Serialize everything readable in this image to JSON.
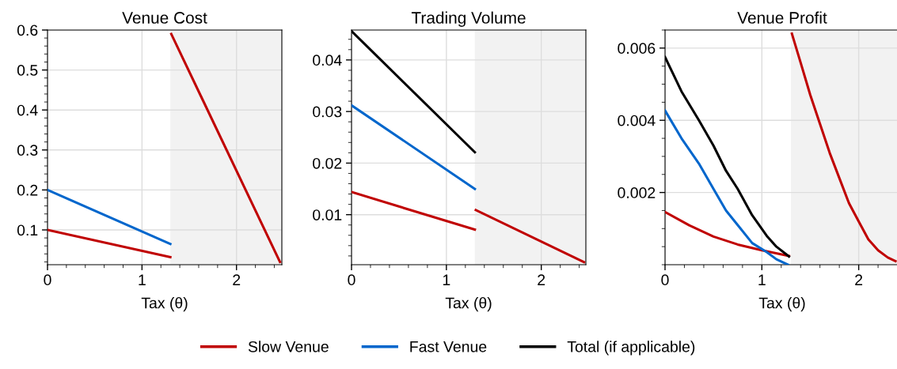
{
  "chart_data": [
    {
      "type": "line",
      "title": "Venue Cost",
      "xlabel": "Tax (θ)",
      "xlim": [
        0,
        2.48
      ],
      "xticks": [
        0,
        1,
        2
      ],
      "ylim": [
        0.013,
        0.6
      ],
      "yticks": [
        0.1,
        0.2,
        0.3,
        0.4,
        0.5,
        0.6
      ],
      "grid": true,
      "legend": "bottom",
      "bands": [
        {
          "axis": "x",
          "from": 1.3,
          "to": 2.48,
          "color": "#f2f2f2"
        }
      ],
      "series": [
        {
          "name": "Slow Venue",
          "color": "#c00000",
          "x": [
            0,
            1.3
          ],
          "values": [
            0.1,
            0.032
          ]
        },
        {
          "color": "#c00000",
          "x": [
            1.31,
            2.46
          ],
          "values": [
            0.59,
            0.02
          ]
        },
        {
          "name": "Fast Venue",
          "color": "#0066cc",
          "x": [
            0,
            1.3
          ],
          "values": [
            0.2,
            0.065
          ]
        }
      ]
    },
    {
      "type": "line",
      "title": "Trading Volume",
      "xlabel": "Tax (θ)",
      "xlim": [
        0,
        2.47
      ],
      "xticks": [
        0,
        1,
        2
      ],
      "ylim": [
        0.0003,
        0.0458
      ],
      "yticks": [
        0.01,
        0.02,
        0.03,
        0.04
      ],
      "grid": true,
      "legend": "bottom",
      "bands": [
        {
          "axis": "x",
          "from": 1.3,
          "to": 2.47,
          "color": "#f2f2f2"
        }
      ],
      "series": [
        {
          "name": "Slow Venue",
          "color": "#c00000",
          "x": [
            0,
            1.3
          ],
          "values": [
            0.0144,
            0.0071
          ]
        },
        {
          "color": "#c00000",
          "x": [
            1.31,
            2.45
          ],
          "values": [
            0.0109,
            0.0008
          ]
        },
        {
          "name": "Fast Venue",
          "color": "#0066cc",
          "x": [
            0,
            1.3
          ],
          "values": [
            0.0312,
            0.015
          ]
        },
        {
          "name": "Total (if applicable)",
          "color": "#000000",
          "x": [
            0,
            1.3
          ],
          "values": [
            0.0456,
            0.0221
          ]
        }
      ]
    },
    {
      "type": "line",
      "title": "Venue Profit",
      "xlabel": "Tax (θ)",
      "xlim": [
        0,
        2.42
      ],
      "xticks": [
        0,
        1,
        2
      ],
      "ylim": [
        0,
        0.0065
      ],
      "yticks": [
        0.002,
        0.004,
        0.006
      ],
      "grid": true,
      "legend": "bottom",
      "bands": [
        {
          "axis": "x",
          "from": 1.3,
          "to": 2.42,
          "color": "#f2f2f2"
        }
      ],
      "series": [
        {
          "name": "Slow Venue",
          "color": "#c00000",
          "x": [
            0,
            0.25,
            0.5,
            0.75,
            1,
            1.28
          ],
          "values": [
            0.00146,
            0.00109,
            0.00078,
            0.00056,
            0.0004,
            0.00024
          ]
        },
        {
          "color": "#c00000",
          "x": [
            1.31,
            1.4,
            1.5,
            1.6,
            1.7,
            1.8,
            1.9,
            2.0,
            2.1,
            2.2,
            2.3,
            2.38
          ],
          "values": [
            0.0064,
            0.0056,
            0.0047,
            0.0039,
            0.0031,
            0.0024,
            0.0017,
            0.0012,
            0.0007,
            0.0004,
            0.0002,
            0.0001
          ]
        },
        {
          "name": "Fast Venue",
          "color": "#0066cc",
          "x": [
            0,
            0.17,
            0.35,
            0.5,
            0.63,
            0.75,
            0.9,
            1.05,
            1.15,
            1.27
          ],
          "values": [
            0.00427,
            0.0035,
            0.0028,
            0.0021,
            0.0015,
            0.0011,
            0.0006,
            0.00035,
            0.00015,
            0
          ]
        },
        {
          "name": "Total (if applicable)",
          "color": "#000000",
          "x": [
            0,
            0.17,
            0.35,
            0.5,
            0.63,
            0.75,
            0.9,
            1.05,
            1.15,
            1.28
          ],
          "values": [
            0.00575,
            0.0048,
            0.004,
            0.0033,
            0.0026,
            0.0021,
            0.00137,
            0.0008,
            0.0005,
            0.00023
          ]
        }
      ]
    }
  ]
}
